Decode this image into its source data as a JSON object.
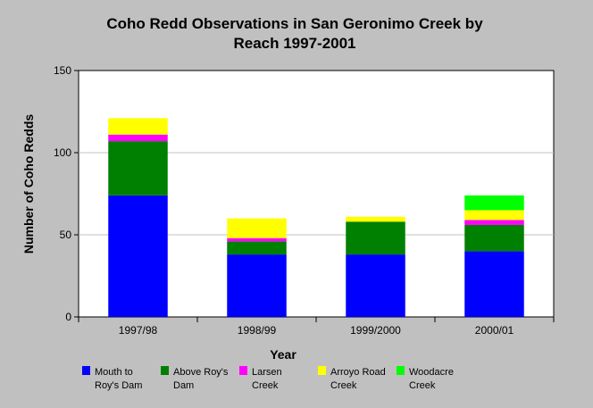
{
  "chart_data": {
    "type": "bar",
    "stacked": true,
    "title_lines": [
      "Coho Redd Observations in San Geronimo Creek by",
      "Reach 1997-2001"
    ],
    "xlabel": "Year",
    "ylabel": "Number of Coho Redds",
    "categories": [
      "1997/98",
      "1998/99",
      "1999/2000",
      "2000/01"
    ],
    "ylim": [
      0,
      150
    ],
    "yticks": [
      "0",
      "50",
      "100",
      "150"
    ],
    "grid": true,
    "legend_position": "bottom",
    "series": [
      {
        "name_lines": [
          "Mouth to",
          "Roy's Dam"
        ],
        "color": "#0000ff",
        "values": [
          74,
          38,
          38,
          40
        ]
      },
      {
        "name_lines": [
          "Above Roy's",
          "Dam"
        ],
        "color": "#008000",
        "values": [
          33,
          8,
          20,
          16
        ]
      },
      {
        "name_lines": [
          "Larsen",
          "Creek"
        ],
        "color": "#ff00ff",
        "values": [
          4,
          2,
          0,
          3
        ]
      },
      {
        "name_lines": [
          "Arroyo Road",
          "Creek"
        ],
        "color": "#ffff00",
        "values": [
          10,
          12,
          3,
          6
        ]
      },
      {
        "name_lines": [
          "Woodacre",
          "Creek"
        ],
        "color": "#00ff00",
        "values": [
          0,
          0,
          0,
          9
        ]
      }
    ]
  }
}
